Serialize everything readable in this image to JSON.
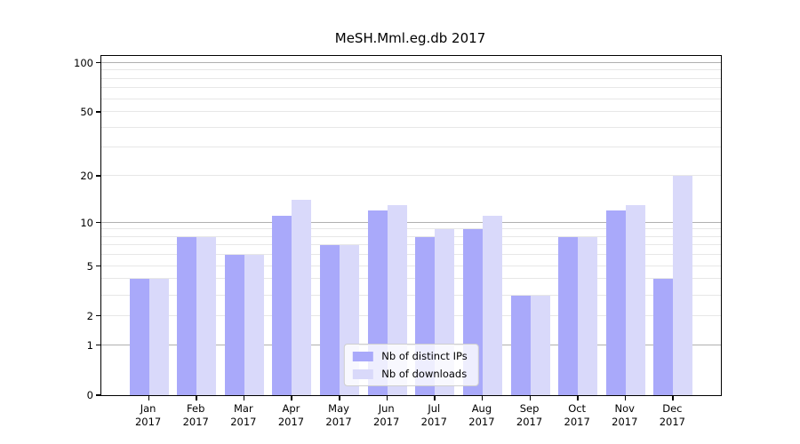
{
  "title": "MeSH.Mml.eg.db 2017",
  "chart_data": {
    "type": "bar",
    "title": "MeSH.Mml.eg.db 2017",
    "categories": [
      "Jan 2017",
      "Feb 2017",
      "Mar 2017",
      "Apr 2017",
      "May 2017",
      "Jun 2017",
      "Jul 2017",
      "Aug 2017",
      "Sep 2017",
      "Oct 2017",
      "Nov 2017",
      "Dec 2017"
    ],
    "series": [
      {
        "name": "Nb of distinct IPs",
        "color": "#a9a9fa",
        "values": [
          4,
          8,
          6,
          11,
          7,
          12,
          8,
          9,
          3,
          8,
          12,
          4
        ]
      },
      {
        "name": "Nb of downloads",
        "color": "#d9d9fa",
        "values": [
          4,
          8,
          6,
          14,
          7,
          13,
          9,
          11,
          3,
          8,
          13,
          20
        ]
      }
    ],
    "xlabel": "",
    "ylabel": "",
    "yscale": "log1p",
    "ylim": [
      0,
      110
    ],
    "y_tick_labels": [
      0,
      1,
      2,
      5,
      10,
      20,
      50,
      100
    ],
    "major_gridlines": [
      1,
      10,
      100
    ],
    "minor_gridlines": [
      2,
      3,
      4,
      5,
      6,
      7,
      8,
      9,
      20,
      30,
      40,
      50,
      60,
      70,
      80,
      90
    ],
    "grid": "on",
    "legend_position": "lower center"
  },
  "colors": {
    "bar_distinct_ips": "#a9a9fa",
    "bar_downloads": "#d9d9fa",
    "grid_major": "#b0b0b0",
    "grid_minor": "#e7e7e7",
    "axis": "#000000",
    "background": "#ffffff"
  }
}
